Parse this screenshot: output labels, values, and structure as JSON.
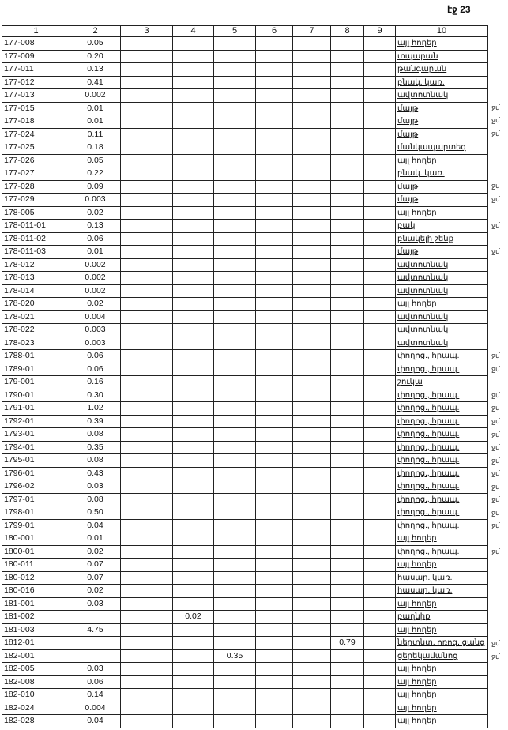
{
  "page_label": "էջ 23",
  "columns": [
    "1",
    "2",
    "3",
    "4",
    "5",
    "6",
    "7",
    "8",
    "9",
    "10"
  ],
  "rows": [
    [
      "177-008",
      "0.05",
      "",
      "",
      "",
      "",
      "",
      "",
      "",
      "այլ հողեր",
      ""
    ],
    [
      "177-009",
      "0.20",
      "",
      "",
      "",
      "",
      "",
      "",
      "",
      "տպարան",
      ""
    ],
    [
      "177-011",
      "0.13",
      "",
      "",
      "",
      "",
      "",
      "",
      "",
      "թանգարան",
      ""
    ],
    [
      "177-012",
      "0.41",
      "",
      "",
      "",
      "",
      "",
      "",
      "",
      "բնակ. կառ.",
      ""
    ],
    [
      "177-013",
      "0.002",
      "",
      "",
      "",
      "",
      "",
      "",
      "",
      "ավտոտնակ",
      ""
    ],
    [
      "177-015",
      "0.01",
      "",
      "",
      "",
      "",
      "",
      "",
      "",
      "մայթ",
      "ջմ"
    ],
    [
      "177-018",
      "0.01",
      "",
      "",
      "",
      "",
      "",
      "",
      "",
      "մայթ",
      "ջմ"
    ],
    [
      "177-024",
      "0.11",
      "",
      "",
      "",
      "",
      "",
      "",
      "",
      "մայթ",
      "ջմ"
    ],
    [
      "177-025",
      "0.18",
      "",
      "",
      "",
      "",
      "",
      "",
      "",
      "մանկապարտեզ",
      ""
    ],
    [
      "177-026",
      "0.05",
      "",
      "",
      "",
      "",
      "",
      "",
      "",
      "այլ հողեր",
      ""
    ],
    [
      "177-027",
      "0.22",
      "",
      "",
      "",
      "",
      "",
      "",
      "",
      "բնակ. կառ.",
      ""
    ],
    [
      "177-028",
      "0.09",
      "",
      "",
      "",
      "",
      "",
      "",
      "",
      "մայթ",
      "ջմ"
    ],
    [
      "177-029",
      "0.003",
      "",
      "",
      "",
      "",
      "",
      "",
      "",
      "մայթ",
      "ջմ"
    ],
    [
      "178-005",
      "0.02",
      "",
      "",
      "",
      "",
      "",
      "",
      "",
      "այլ հողեր",
      ""
    ],
    [
      "178-011-01",
      "0.13",
      "",
      "",
      "",
      "",
      "",
      "",
      "",
      "բակ",
      "ջմ"
    ],
    [
      "178-011-02",
      "0.06",
      "",
      "",
      "",
      "",
      "",
      "",
      "",
      "բնակելի շենք",
      ""
    ],
    [
      "178-011-03",
      "0.01",
      "",
      "",
      "",
      "",
      "",
      "",
      "",
      "մայթ",
      "ջմ"
    ],
    [
      "178-012",
      "0.002",
      "",
      "",
      "",
      "",
      "",
      "",
      "",
      "ավտոտնակ",
      ""
    ],
    [
      "178-013",
      "0.002",
      "",
      "",
      "",
      "",
      "",
      "",
      "",
      "ավտոտնակ",
      ""
    ],
    [
      "178-014",
      "0.002",
      "",
      "",
      "",
      "",
      "",
      "",
      "",
      "ավտոտնակ",
      ""
    ],
    [
      "178-020",
      "0.02",
      "",
      "",
      "",
      "",
      "",
      "",
      "",
      "այլ հողեր",
      ""
    ],
    [
      "178-021",
      "0.004",
      "",
      "",
      "",
      "",
      "",
      "",
      "",
      "ավտոտնակ",
      ""
    ],
    [
      "178-022",
      "0.003",
      "",
      "",
      "",
      "",
      "",
      "",
      "",
      "ավտոտնակ",
      ""
    ],
    [
      "178-023",
      "0.003",
      "",
      "",
      "",
      "",
      "",
      "",
      "",
      "ավտոտնակ",
      ""
    ],
    [
      "1788-01",
      "0.06",
      "",
      "",
      "",
      "",
      "",
      "",
      "",
      "փողոց., հրապ.",
      "ջմ"
    ],
    [
      "1789-01",
      "0.06",
      "",
      "",
      "",
      "",
      "",
      "",
      "",
      "փողոց., հրապ.",
      "ջմ"
    ],
    [
      "179-001",
      "0.16",
      "",
      "",
      "",
      "",
      "",
      "",
      "",
      "շուկա",
      ""
    ],
    [
      "1790-01",
      "0.30",
      "",
      "",
      "",
      "",
      "",
      "",
      "",
      "փողոց., հրապ.",
      "ջմ"
    ],
    [
      "1791-01",
      "1.02",
      "",
      "",
      "",
      "",
      "",
      "",
      "",
      "փողոց., հրապ.",
      "ջմ"
    ],
    [
      "1792-01",
      "0.39",
      "",
      "",
      "",
      "",
      "",
      "",
      "",
      "փողոց., հրապ.",
      "ջմ"
    ],
    [
      "1793-01",
      "0.08",
      "",
      "",
      "",
      "",
      "",
      "",
      "",
      "փողոց., հրապ.",
      "ջմ"
    ],
    [
      "1794-01",
      "0.35",
      "",
      "",
      "",
      "",
      "",
      "",
      "",
      "փողոց., հրապ.",
      "ջմ"
    ],
    [
      "1795-01",
      "0.08",
      "",
      "",
      "",
      "",
      "",
      "",
      "",
      "փողոց., հրապ.",
      "ջմ"
    ],
    [
      "1796-01",
      "0.43",
      "",
      "",
      "",
      "",
      "",
      "",
      "",
      "փողոց., հրապ.",
      "ջմ"
    ],
    [
      "1796-02",
      "0.03",
      "",
      "",
      "",
      "",
      "",
      "",
      "",
      "փողոց., հրապ.",
      "ջմ"
    ],
    [
      "1797-01",
      "0.08",
      "",
      "",
      "",
      "",
      "",
      "",
      "",
      "փողոց., հրապ.",
      "ջմ"
    ],
    [
      "1798-01",
      "0.50",
      "",
      "",
      "",
      "",
      "",
      "",
      "",
      "փողոց., հրապ.",
      "ջմ"
    ],
    [
      "1799-01",
      "0.04",
      "",
      "",
      "",
      "",
      "",
      "",
      "",
      "փողոց., հրապ.",
      "ջմ"
    ],
    [
      "180-001",
      "0.01",
      "",
      "",
      "",
      "",
      "",
      "",
      "",
      "այլ հողեր",
      ""
    ],
    [
      "1800-01",
      "0.02",
      "",
      "",
      "",
      "",
      "",
      "",
      "",
      "փողոց., հրապ.",
      "ջմ"
    ],
    [
      "180-011",
      "0.07",
      "",
      "",
      "",
      "",
      "",
      "",
      "",
      "այլ հողեր",
      ""
    ],
    [
      "180-012",
      "0.07",
      "",
      "",
      "",
      "",
      "",
      "",
      "",
      "հասար. կառ.",
      ""
    ],
    [
      "180-016",
      "0.02",
      "",
      "",
      "",
      "",
      "",
      "",
      "",
      "հասար. կառ.",
      ""
    ],
    [
      "181-001",
      "0.03",
      "",
      "",
      "",
      "",
      "",
      "",
      "",
      "այլ հողեր",
      ""
    ],
    [
      "181-002",
      "",
      "",
      "0.02",
      "",
      "",
      "",
      "",
      "",
      "բաղնիք",
      ""
    ],
    [
      "181-003",
      "4.75",
      "",
      "",
      "",
      "",
      "",
      "",
      "",
      "այլ հողեր",
      ""
    ],
    [
      "1812-01",
      "",
      "",
      "",
      "",
      "",
      "",
      "0.79",
      "",
      "ներտնտ. ոռոգ. ցանց",
      "ջմ"
    ],
    [
      "182-001",
      "",
      "",
      "",
      "0.35",
      "",
      "",
      "",
      "",
      "ցերեկամանոց",
      "ջմ"
    ],
    [
      "182-005",
      "0.03",
      "",
      "",
      "",
      "",
      "",
      "",
      "",
      "այլ հողեր",
      ""
    ],
    [
      "182-008",
      "0.06",
      "",
      "",
      "",
      "",
      "",
      "",
      "",
      "այլ հողեր",
      ""
    ],
    [
      "182-010",
      "0.14",
      "",
      "",
      "",
      "",
      "",
      "",
      "",
      "այլ հողեր",
      ""
    ],
    [
      "182-024",
      "0.004",
      "",
      "",
      "",
      "",
      "",
      "",
      "",
      "այլ հողեր",
      ""
    ],
    [
      "182-028",
      "0.04",
      "",
      "",
      "",
      "",
      "",
      "",
      "",
      "այլ հողեր",
      ""
    ]
  ]
}
